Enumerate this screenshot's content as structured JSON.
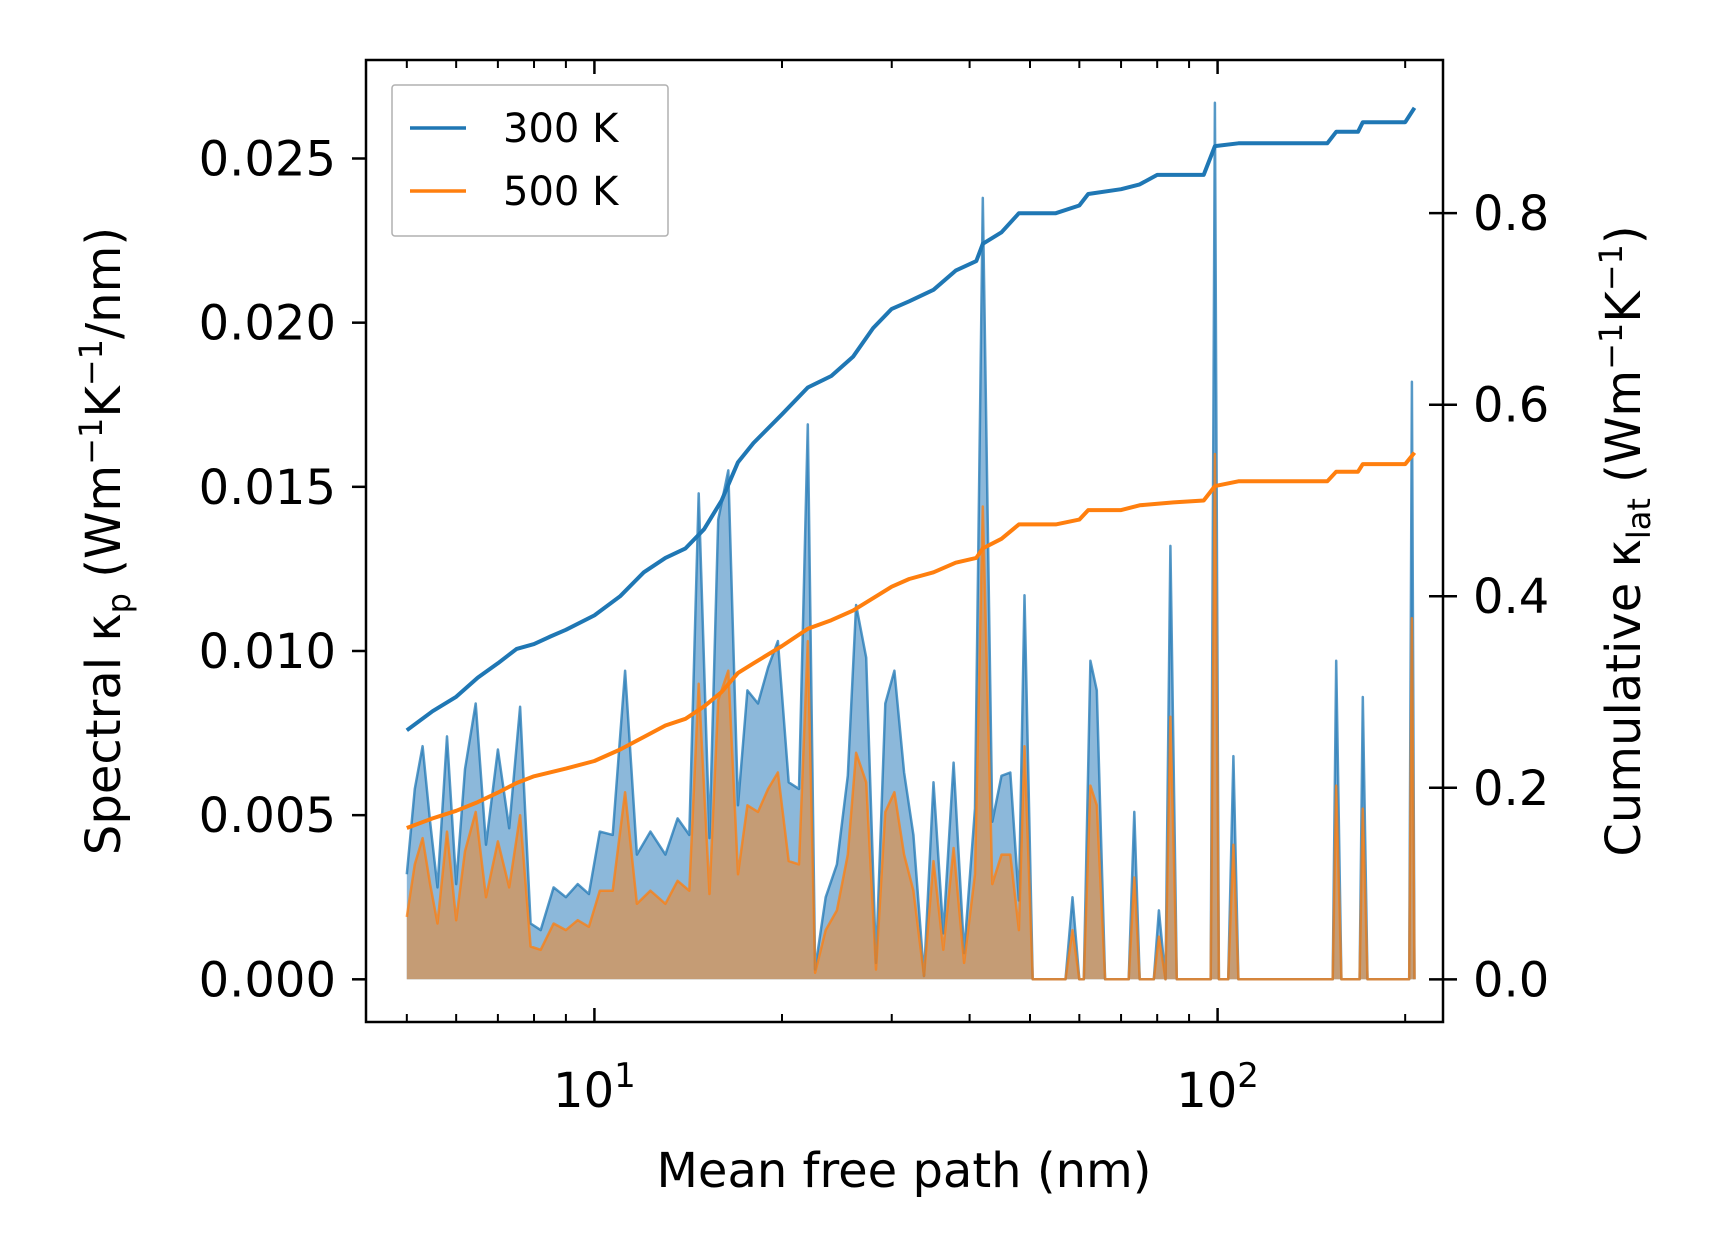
{
  "chart_data": {
    "type": "line",
    "title": "",
    "xlabel": "Mean free path (nm)",
    "ylabel_left": {
      "prefix": "Spectral κ",
      "sub": "p",
      "units": " (Wm",
      "sup1": "−1",
      "mid": "K",
      "sup2": "−1",
      "end": "/nm)"
    },
    "ylabel_right": {
      "prefix": "Cumulative κ",
      "sub": "lat",
      "units": " (Wm",
      "sup1": "−1",
      "mid": "K",
      "sup2": "−1",
      "end": ")"
    },
    "xscale": "log",
    "xlim": [
      4.3,
      230
    ],
    "ylim_left": [
      -0.0013,
      0.028
    ],
    "ylim_right": [
      -0.04457,
      0.95994
    ],
    "xticks_major": [
      {
        "value": 10,
        "base": "10",
        "exp": "1"
      },
      {
        "value": 100,
        "base": "10",
        "exp": "2"
      }
    ],
    "xticks_minor": [
      5,
      6,
      7,
      8,
      9,
      20,
      30,
      40,
      50,
      60,
      70,
      80,
      90,
      200
    ],
    "yticks_left": [
      {
        "value": 0.0,
        "label": "0.000"
      },
      {
        "value": 0.005,
        "label": "0.005"
      },
      {
        "value": 0.01,
        "label": "0.010"
      },
      {
        "value": 0.015,
        "label": "0.015"
      },
      {
        "value": 0.02,
        "label": "0.020"
      },
      {
        "value": 0.025,
        "label": "0.025"
      }
    ],
    "yticks_right": [
      {
        "value": 0.0,
        "label": "0.0"
      },
      {
        "value": 0.2,
        "label": "0.2"
      },
      {
        "value": 0.4,
        "label": "0.4"
      },
      {
        "value": 0.6,
        "label": "0.6"
      },
      {
        "value": 0.8,
        "label": "0.8"
      }
    ],
    "legend": {
      "location": "top-left",
      "entries": [
        "300 K",
        "500 K"
      ]
    },
    "colors": {
      "300 K": "#1f77b4",
      "500 K": "#ff7f0e",
      "fill_300": "#7fb0d6",
      "fill_500": "#c89a70"
    },
    "series_spectral": [
      {
        "name": "300 K",
        "axis": "left",
        "points": [
          [
            5,
            0.0032
          ],
          [
            5.15,
            0.0058
          ],
          [
            5.3,
            0.0071
          ],
          [
            5.45,
            0.0048
          ],
          [
            5.6,
            0.0028
          ],
          [
            5.8,
            0.0074
          ],
          [
            6.0,
            0.0029
          ],
          [
            6.2,
            0.0064
          ],
          [
            6.45,
            0.0084
          ],
          [
            6.7,
            0.0041
          ],
          [
            7.0,
            0.007
          ],
          [
            7.3,
            0.0046
          ],
          [
            7.6,
            0.0083
          ],
          [
            7.9,
            0.0017
          ],
          [
            8.2,
            0.0015
          ],
          [
            8.6,
            0.0028
          ],
          [
            9.0,
            0.0025
          ],
          [
            9.4,
            0.0029
          ],
          [
            9.8,
            0.0026
          ],
          [
            10.2,
            0.0045
          ],
          [
            10.7,
            0.0044
          ],
          [
            11.2,
            0.0094
          ],
          [
            11.7,
            0.0038
          ],
          [
            12.3,
            0.0045
          ],
          [
            13.0,
            0.0038
          ],
          [
            13.6,
            0.0049
          ],
          [
            14.2,
            0.0044
          ],
          [
            14.7,
            0.0148
          ],
          [
            15.3,
            0.0043
          ],
          [
            15.8,
            0.014
          ],
          [
            16.4,
            0.0155
          ],
          [
            17.0,
            0.0053
          ],
          [
            17.6,
            0.0088
          ],
          [
            18.3,
            0.0084
          ],
          [
            19.0,
            0.0095
          ],
          [
            19.7,
            0.0103
          ],
          [
            20.5,
            0.006
          ],
          [
            21.3,
            0.0058
          ],
          [
            22.0,
            0.0169
          ],
          [
            22.6,
            0.0003
          ],
          [
            23.5,
            0.0025
          ],
          [
            24.5,
            0.0035
          ],
          [
            25.5,
            0.0062
          ],
          [
            26.3,
            0.0114
          ],
          [
            27.3,
            0.0098
          ],
          [
            28.3,
            0.0005
          ],
          [
            29.3,
            0.0084
          ],
          [
            30.3,
            0.0094
          ],
          [
            31.4,
            0.0063
          ],
          [
            32.5,
            0.0044
          ],
          [
            33.8,
            0.0001
          ],
          [
            35.0,
            0.006
          ],
          [
            36.3,
            0.0014
          ],
          [
            37.7,
            0.0066
          ],
          [
            39.2,
            0.0008
          ],
          [
            40.8,
            0.0052
          ],
          [
            42.0,
            0.0238
          ],
          [
            43.5,
            0.0048
          ],
          [
            45.0,
            0.0062
          ],
          [
            46.5,
            0.0063
          ],
          [
            48.0,
            0.0024
          ],
          [
            49.0,
            0.0117
          ],
          [
            50.5,
            0.0
          ],
          [
            57.0,
            0.0
          ],
          [
            58.5,
            0.0025
          ],
          [
            60.0,
            0.0
          ],
          [
            61.0,
            0.0
          ],
          [
            62.5,
            0.0097
          ],
          [
            64.0,
            0.0088
          ],
          [
            66.0,
            0.0
          ],
          [
            72.0,
            0.0
          ],
          [
            73.5,
            0.0051
          ],
          [
            75.0,
            0.0
          ],
          [
            79.0,
            0.0
          ],
          [
            80.5,
            0.0021
          ],
          [
            82.5,
            0.0
          ],
          [
            84.0,
            0.0132
          ],
          [
            86.0,
            0.0
          ],
          [
            97.5,
            0.0
          ],
          [
            99.0,
            0.0267
          ],
          [
            100.5,
            0.0
          ],
          [
            104.0,
            0.0
          ],
          [
            106.0,
            0.0068
          ],
          [
            108.0,
            0.0
          ],
          [
            153.0,
            0.0
          ],
          [
            155.0,
            0.0097
          ],
          [
            158.0,
            0.0
          ],
          [
            169.0,
            0.0
          ],
          [
            171.0,
            0.0086
          ],
          [
            174.0,
            0.0
          ],
          [
            203.0,
            0.0
          ],
          [
            205.0,
            0.0182
          ],
          [
            207.0,
            0.0
          ]
        ]
      },
      {
        "name": "500 K",
        "axis": "left",
        "points": [
          [
            5,
            0.0019
          ],
          [
            5.15,
            0.0035
          ],
          [
            5.3,
            0.0043
          ],
          [
            5.45,
            0.0029
          ],
          [
            5.6,
            0.0017
          ],
          [
            5.8,
            0.0045
          ],
          [
            6.0,
            0.0018
          ],
          [
            6.2,
            0.0039
          ],
          [
            6.45,
            0.0051
          ],
          [
            6.7,
            0.0025
          ],
          [
            7.0,
            0.0042
          ],
          [
            7.3,
            0.0028
          ],
          [
            7.6,
            0.005
          ],
          [
            7.9,
            0.001
          ],
          [
            8.2,
            0.0009
          ],
          [
            8.6,
            0.0017
          ],
          [
            9.0,
            0.0015
          ],
          [
            9.4,
            0.0018
          ],
          [
            9.8,
            0.0016
          ],
          [
            10.2,
            0.0027
          ],
          [
            10.7,
            0.0027
          ],
          [
            11.2,
            0.0057
          ],
          [
            11.7,
            0.0023
          ],
          [
            12.3,
            0.0027
          ],
          [
            13.0,
            0.0023
          ],
          [
            13.6,
            0.003
          ],
          [
            14.2,
            0.0027
          ],
          [
            14.7,
            0.009
          ],
          [
            15.3,
            0.0026
          ],
          [
            15.8,
            0.0085
          ],
          [
            16.4,
            0.0094
          ],
          [
            17.0,
            0.0032
          ],
          [
            17.6,
            0.0053
          ],
          [
            18.3,
            0.0051
          ],
          [
            19.0,
            0.0058
          ],
          [
            19.7,
            0.0063
          ],
          [
            20.5,
            0.0036
          ],
          [
            21.3,
            0.0035
          ],
          [
            22.0,
            0.0103
          ],
          [
            22.6,
            0.0002
          ],
          [
            23.5,
            0.0015
          ],
          [
            24.5,
            0.0021
          ],
          [
            25.5,
            0.0038
          ],
          [
            26.3,
            0.0069
          ],
          [
            27.3,
            0.006
          ],
          [
            28.3,
            0.0003
          ],
          [
            29.3,
            0.0051
          ],
          [
            30.3,
            0.0057
          ],
          [
            31.4,
            0.0038
          ],
          [
            32.5,
            0.0027
          ],
          [
            33.8,
            0.0001
          ],
          [
            35.0,
            0.0036
          ],
          [
            36.3,
            0.0009
          ],
          [
            37.7,
            0.004
          ],
          [
            39.2,
            0.0005
          ],
          [
            40.8,
            0.0032
          ],
          [
            42.0,
            0.0144
          ],
          [
            43.5,
            0.0029
          ],
          [
            45.0,
            0.0038
          ],
          [
            46.5,
            0.0038
          ],
          [
            48.0,
            0.0015
          ],
          [
            49.0,
            0.0071
          ],
          [
            50.5,
            0.0
          ],
          [
            57.0,
            0.0
          ],
          [
            58.5,
            0.0015
          ],
          [
            60.0,
            0.0
          ],
          [
            61.0,
            0.0
          ],
          [
            62.5,
            0.0059
          ],
          [
            64.0,
            0.0053
          ],
          [
            66.0,
            0.0
          ],
          [
            72.0,
            0.0
          ],
          [
            73.5,
            0.0031
          ],
          [
            75.0,
            0.0
          ],
          [
            79.0,
            0.0
          ],
          [
            80.5,
            0.0013
          ],
          [
            82.5,
            0.0
          ],
          [
            84.0,
            0.008
          ],
          [
            86.0,
            0.0
          ],
          [
            97.5,
            0.0
          ],
          [
            99.0,
            0.016
          ],
          [
            100.5,
            0.0
          ],
          [
            104.0,
            0.0
          ],
          [
            106.0,
            0.0041
          ],
          [
            108.0,
            0.0
          ],
          [
            153.0,
            0.0
          ],
          [
            155.0,
            0.0059
          ],
          [
            158.0,
            0.0
          ],
          [
            169.0,
            0.0
          ],
          [
            171.0,
            0.0052
          ],
          [
            174.0,
            0.0
          ],
          [
            203.0,
            0.0
          ],
          [
            205.0,
            0.011
          ],
          [
            207.0,
            0.0
          ]
        ]
      }
    ],
    "series_cumulative": [
      {
        "name": "300 K",
        "axis": "right",
        "points": [
          [
            5.0,
            0.26
          ],
          [
            5.5,
            0.28
          ],
          [
            6.0,
            0.295
          ],
          [
            6.5,
            0.315
          ],
          [
            7.0,
            0.33
          ],
          [
            7.5,
            0.345
          ],
          [
            8.0,
            0.35
          ],
          [
            8.5,
            0.358
          ],
          [
            9.0,
            0.365
          ],
          [
            10.0,
            0.38
          ],
          [
            11.0,
            0.4
          ],
          [
            12.0,
            0.425
          ],
          [
            13.0,
            0.44
          ],
          [
            14.0,
            0.45
          ],
          [
            15.0,
            0.47
          ],
          [
            16.0,
            0.5
          ],
          [
            17.0,
            0.54
          ],
          [
            18.0,
            0.56
          ],
          [
            20.0,
            0.59
          ],
          [
            22.0,
            0.618
          ],
          [
            24.0,
            0.63
          ],
          [
            26.0,
            0.65
          ],
          [
            28.0,
            0.68
          ],
          [
            30.0,
            0.7
          ],
          [
            32.0,
            0.708
          ],
          [
            35.0,
            0.72
          ],
          [
            38.0,
            0.74
          ],
          [
            41.0,
            0.75
          ],
          [
            42.0,
            0.768
          ],
          [
            45.0,
            0.78
          ],
          [
            48.0,
            0.8
          ],
          [
            55.0,
            0.8
          ],
          [
            60.0,
            0.808
          ],
          [
            62.0,
            0.82
          ],
          [
            70.0,
            0.825
          ],
          [
            75.0,
            0.83
          ],
          [
            80.0,
            0.84
          ],
          [
            95.0,
            0.84
          ],
          [
            99.0,
            0.87
          ],
          [
            108.0,
            0.873
          ],
          [
            150.0,
            0.873
          ],
          [
            155.0,
            0.885
          ],
          [
            168.0,
            0.885
          ],
          [
            171.0,
            0.895
          ],
          [
            200.0,
            0.895
          ],
          [
            207.0,
            0.91
          ]
        ]
      },
      {
        "name": "500 K",
        "axis": "right",
        "points": [
          [
            5.0,
            0.158
          ],
          [
            5.5,
            0.168
          ],
          [
            6.0,
            0.176
          ],
          [
            6.5,
            0.185
          ],
          [
            7.0,
            0.195
          ],
          [
            7.5,
            0.205
          ],
          [
            8.0,
            0.212
          ],
          [
            9.0,
            0.22
          ],
          [
            10.0,
            0.228
          ],
          [
            11.0,
            0.24
          ],
          [
            12.0,
            0.253
          ],
          [
            13.0,
            0.265
          ],
          [
            14.0,
            0.272
          ],
          [
            15.0,
            0.285
          ],
          [
            16.0,
            0.3
          ],
          [
            17.0,
            0.32
          ],
          [
            18.0,
            0.33
          ],
          [
            20.0,
            0.348
          ],
          [
            22.0,
            0.366
          ],
          [
            24.0,
            0.375
          ],
          [
            26.0,
            0.385
          ],
          [
            28.0,
            0.398
          ],
          [
            30.0,
            0.41
          ],
          [
            32.0,
            0.418
          ],
          [
            35.0,
            0.425
          ],
          [
            38.0,
            0.435
          ],
          [
            41.0,
            0.44
          ],
          [
            42.0,
            0.45
          ],
          [
            45.0,
            0.46
          ],
          [
            48.0,
            0.475
          ],
          [
            55.0,
            0.475
          ],
          [
            60.0,
            0.48
          ],
          [
            62.0,
            0.49
          ],
          [
            70.0,
            0.49
          ],
          [
            75.0,
            0.495
          ],
          [
            85.0,
            0.498
          ],
          [
            95.0,
            0.5
          ],
          [
            99.0,
            0.515
          ],
          [
            108.0,
            0.52
          ],
          [
            150.0,
            0.52
          ],
          [
            155.0,
            0.53
          ],
          [
            168.0,
            0.53
          ],
          [
            171.0,
            0.538
          ],
          [
            200.0,
            0.538
          ],
          [
            207.0,
            0.55
          ]
        ]
      }
    ]
  }
}
